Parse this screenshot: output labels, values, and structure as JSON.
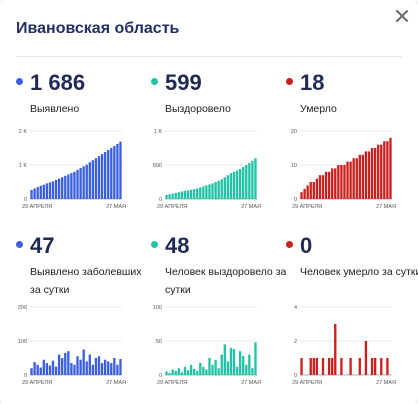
{
  "header": {
    "title": "Ивановская область"
  },
  "panels": [
    {
      "value": "1 686",
      "label": "Выявлено",
      "color": "#3b5fe0",
      "chart_data": {
        "type": "bar",
        "series_color": "#3b5fe0",
        "yticks": [
          "2 K",
          "1 K",
          "0"
        ],
        "ytick_values": [
          2000,
          1000,
          0
        ],
        "ylim": [
          0,
          2000
        ],
        "x_start_label": "29 АПРЕЛЯ",
        "x_end_label": "27 МАЯ",
        "values": [
          265,
          310,
          350,
          390,
          420,
          460,
          490,
          520,
          560,
          600,
          640,
          680,
          720,
          760,
          800,
          860,
          910,
          960,
          1010,
          1080,
          1140,
          1200,
          1260,
          1320,
          1380,
          1440,
          1500,
          1560,
          1620,
          1686
        ]
      }
    },
    {
      "value": "599",
      "label": "Выздоровело",
      "color": "#1fc4a5",
      "chart_data": {
        "type": "bar",
        "series_color": "#1fc4a5",
        "yticks": [
          "1 K",
          "500",
          "0"
        ],
        "ytick_values": [
          1000,
          500,
          0
        ],
        "ylim": [
          0,
          1000
        ],
        "x_start_label": "29 АПРЕЛЯ",
        "x_end_label": "27 МАЯ",
        "values": [
          60,
          70,
          80,
          90,
          100,
          110,
          120,
          125,
          135,
          145,
          155,
          170,
          185,
          200,
          215,
          230,
          250,
          270,
          290,
          320,
          350,
          380,
          400,
          420,
          440,
          470,
          500,
          530,
          560,
          599
        ]
      }
    },
    {
      "value": "18",
      "label": "Умерло",
      "color": "#cc1f1f",
      "chart_data": {
        "type": "bar",
        "series_color": "#cc1f1f",
        "yticks": [
          "20",
          "10",
          "0"
        ],
        "ytick_values": [
          20,
          10,
          0
        ],
        "ylim": [
          0,
          20
        ],
        "x_start_label": "29 АПРЕЛЯ",
        "x_end_label": "27 МАЯ",
        "values": [
          2,
          3,
          4,
          5,
          5,
          6,
          7,
          7,
          8,
          8,
          9,
          9,
          10,
          10,
          10,
          11,
          11,
          12,
          12,
          13,
          13,
          14,
          14,
          15,
          15,
          16,
          16,
          17,
          17,
          18
        ]
      }
    },
    {
      "value": "47",
      "label": "Выявлено заболевших за сутки",
      "color": "#3b5fe0",
      "chart_data": {
        "type": "bar",
        "series_color": "#3b5fe0",
        "yticks": [
          "200",
          "100",
          "0"
        ],
        "ytick_values": [
          200,
          100,
          0
        ],
        "ylim": [
          0,
          200
        ],
        "x_start_label": "29 АПРЕЛЯ",
        "x_end_label": "27 МАЯ",
        "values": [
          20,
          38,
          30,
          22,
          45,
          35,
          28,
          42,
          25,
          60,
          50,
          65,
          70,
          35,
          30,
          55,
          45,
          75,
          40,
          60,
          30,
          50,
          55,
          35,
          45,
          40,
          35,
          50,
          30,
          47
        ]
      }
    },
    {
      "value": "48",
      "label": "Человек выздоровело за сутки",
      "color": "#1fc4a5",
      "chart_data": {
        "type": "bar",
        "series_color": "#1fc4a5",
        "yticks": [
          "100",
          "50",
          "0"
        ],
        "ytick_values": [
          100,
          50,
          0
        ],
        "ylim": [
          0,
          100
        ],
        "x_start_label": "29 АПРЕЛЯ",
        "x_end_label": "27 МАЯ",
        "values": [
          5,
          3,
          8,
          6,
          10,
          4,
          12,
          7,
          15,
          9,
          6,
          18,
          12,
          8,
          25,
          15,
          22,
          10,
          30,
          45,
          20,
          40,
          38,
          12,
          35,
          28,
          15,
          30,
          10,
          48
        ]
      }
    },
    {
      "value": "0",
      "label": "Человек умерло за сутки",
      "color": "#cc1f1f",
      "chart_data": {
        "type": "bar",
        "series_color": "#cc1f1f",
        "yticks": [
          "4",
          "2",
          "0"
        ],
        "ytick_values": [
          4,
          2,
          0
        ],
        "ylim": [
          0,
          4
        ],
        "x_start_label": "29 АПРЕЛЯ",
        "x_end_label": "27 МАЯ",
        "values": [
          1,
          0,
          0,
          1,
          1,
          1,
          0,
          1,
          0,
          1,
          1,
          3,
          0,
          1,
          0,
          0,
          1,
          0,
          0,
          1,
          0,
          2,
          0,
          1,
          1,
          0,
          1,
          0,
          1,
          0
        ]
      }
    }
  ]
}
